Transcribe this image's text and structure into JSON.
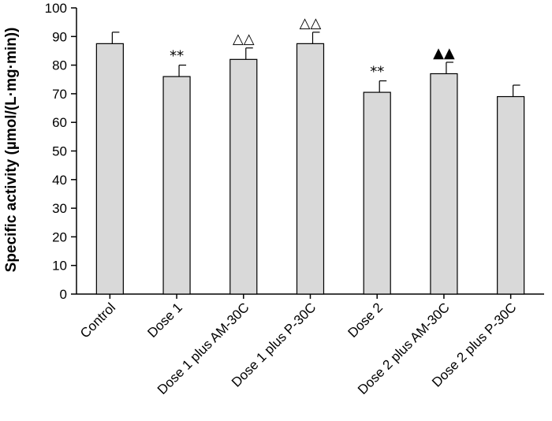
{
  "chart_data": {
    "type": "bar",
    "title": "",
    "xlabel": "",
    "ylabel": "Specific activity (µmol/(L·mg·min))",
    "ylim": [
      0,
      100
    ],
    "yticks": [
      0,
      10,
      20,
      30,
      40,
      50,
      60,
      70,
      80,
      90,
      100
    ],
    "categories": [
      "Control",
      "Dose 1",
      "Dose 1 plus AM-30C",
      "Dose 1 plus P-30C",
      "Dose 2",
      "Dose 2 plus AM-30C",
      "Dose 2 plus P-30C"
    ],
    "values": [
      87.5,
      76,
      82,
      87.5,
      70.5,
      77,
      69
    ],
    "errors": [
      4,
      4,
      4,
      4,
      4,
      4,
      4
    ],
    "annotations": [
      "",
      "**",
      "△△",
      "△△",
      "**",
      "▲▲",
      ""
    ],
    "bar_color": "#d9d9d9",
    "grid": false,
    "legend": "none"
  }
}
